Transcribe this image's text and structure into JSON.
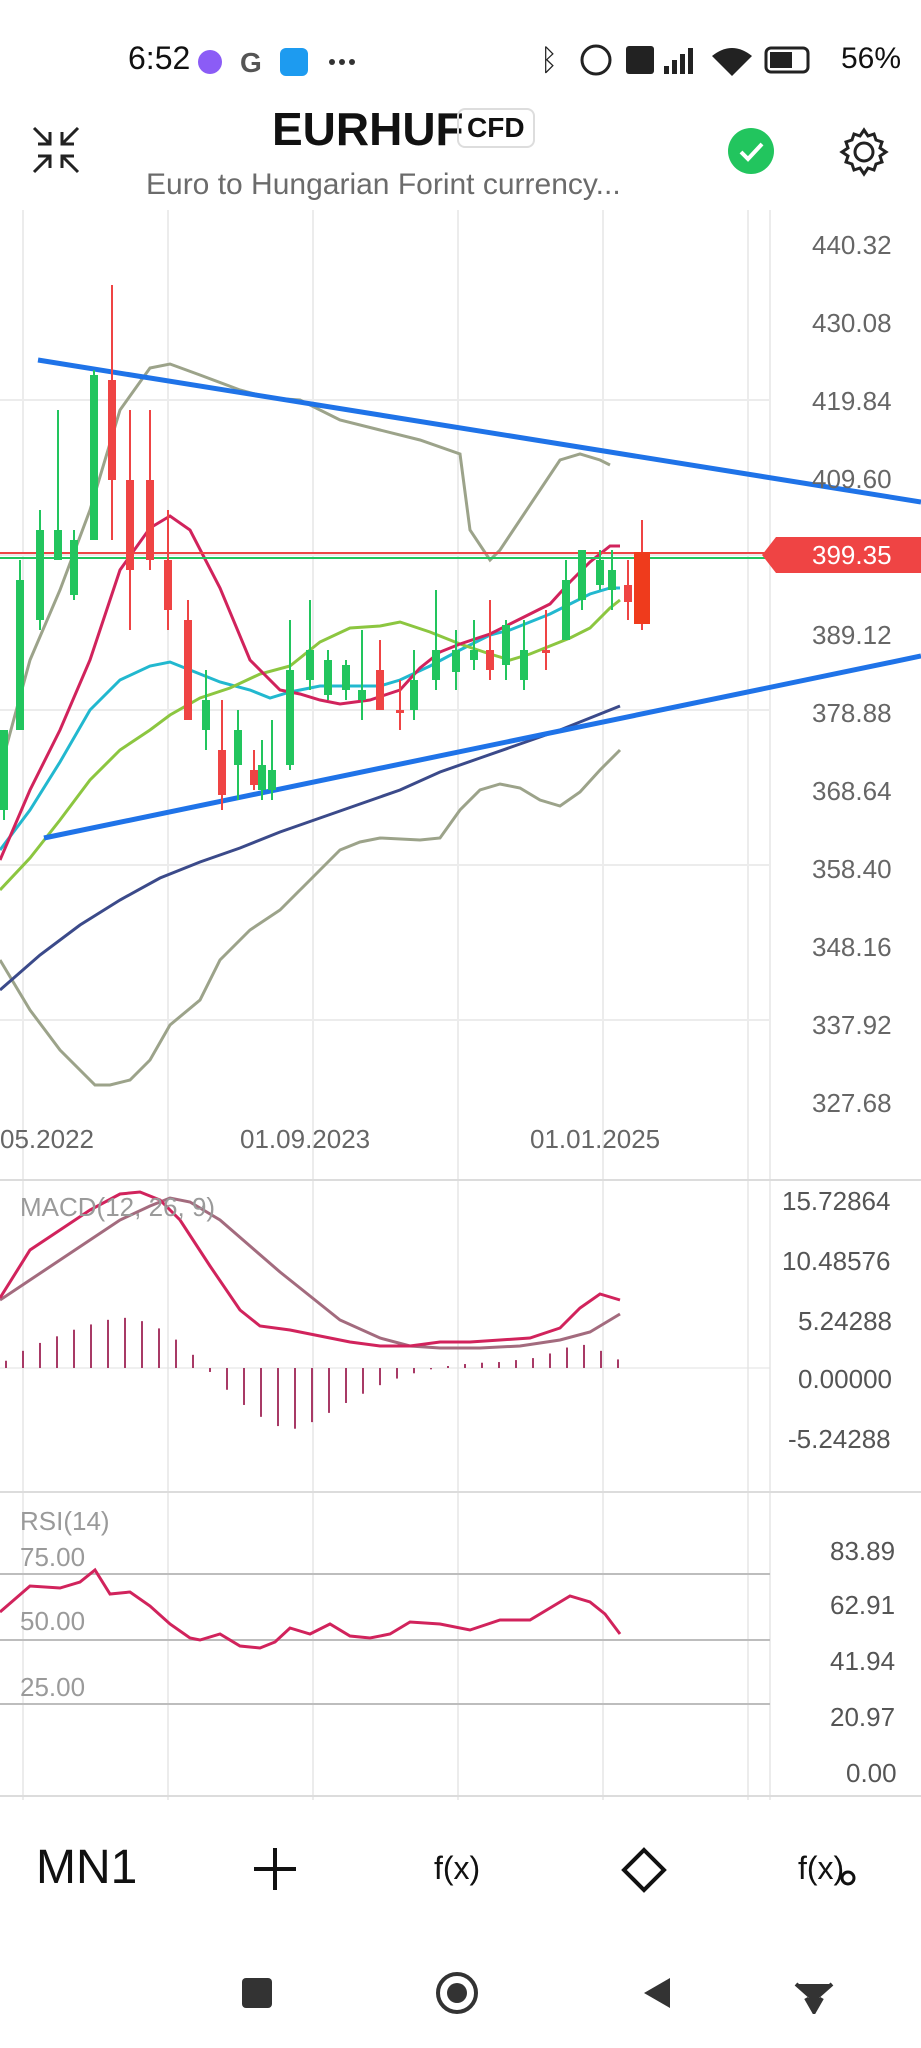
{
  "status": {
    "time": "6:52",
    "battery": "56%",
    "icons": [
      "messenger-icon",
      "google-icon",
      "twitter-icon",
      "more-dots-icon",
      "bluetooth-icon",
      "r-icon",
      "volte-icon",
      "signal-icon",
      "wifi-icon",
      "battery-icon"
    ]
  },
  "header": {
    "symbol": "EURHUF",
    "badge": "CFD",
    "subtitle": "Euro to Hungarian Forint currency...",
    "status_color": "#22c55e"
  },
  "price_axis": [
    "440.32",
    "430.08",
    "419.84",
    "409.60",
    "399.35",
    "389.12",
    "378.88",
    "368.64",
    "358.40",
    "348.16",
    "337.92",
    "327.68"
  ],
  "current_price": "399.35",
  "x_axis": [
    "05.2022",
    "01.09.2023",
    "01.01.2025"
  ],
  "macd": {
    "label": "MACD(12, 26, 9)",
    "ticks": [
      "15.72864",
      "10.48576",
      "5.24288",
      "0.00000",
      "-5.24288"
    ],
    "histogram": [
      1.1,
      2.6,
      3.8,
      4.8,
      5.8,
      6.6,
      7.3,
      7.6,
      7.1,
      6.0,
      4.3,
      2.0,
      -0.6,
      -3.3,
      -5.6,
      -7.4,
      -8.8,
      -9.2,
      -8.2,
      -6.8,
      -5.3,
      -3.9,
      -2.6,
      -1.6,
      -0.8,
      -0.2,
      0.3,
      0.6,
      0.8,
      0.9,
      1.2,
      1.5,
      2.2,
      3.1,
      3.5,
      2.6,
      1.3
    ]
  },
  "rsi": {
    "label": "RSI(14)",
    "levels": [
      "75.00",
      "50.00",
      "25.00"
    ],
    "ticks": [
      "83.89",
      "62.91",
      "41.94",
      "20.97",
      "0.00"
    ]
  },
  "toolbar": {
    "timeframe": "MN1",
    "add": "+",
    "fx": "f(x)",
    "fx_settings": "f(x)"
  },
  "colors": {
    "bull": "#22c55e",
    "bear": "#ef4444",
    "trendline": "#1f73e8",
    "price_tag": "#ef4444"
  }
}
